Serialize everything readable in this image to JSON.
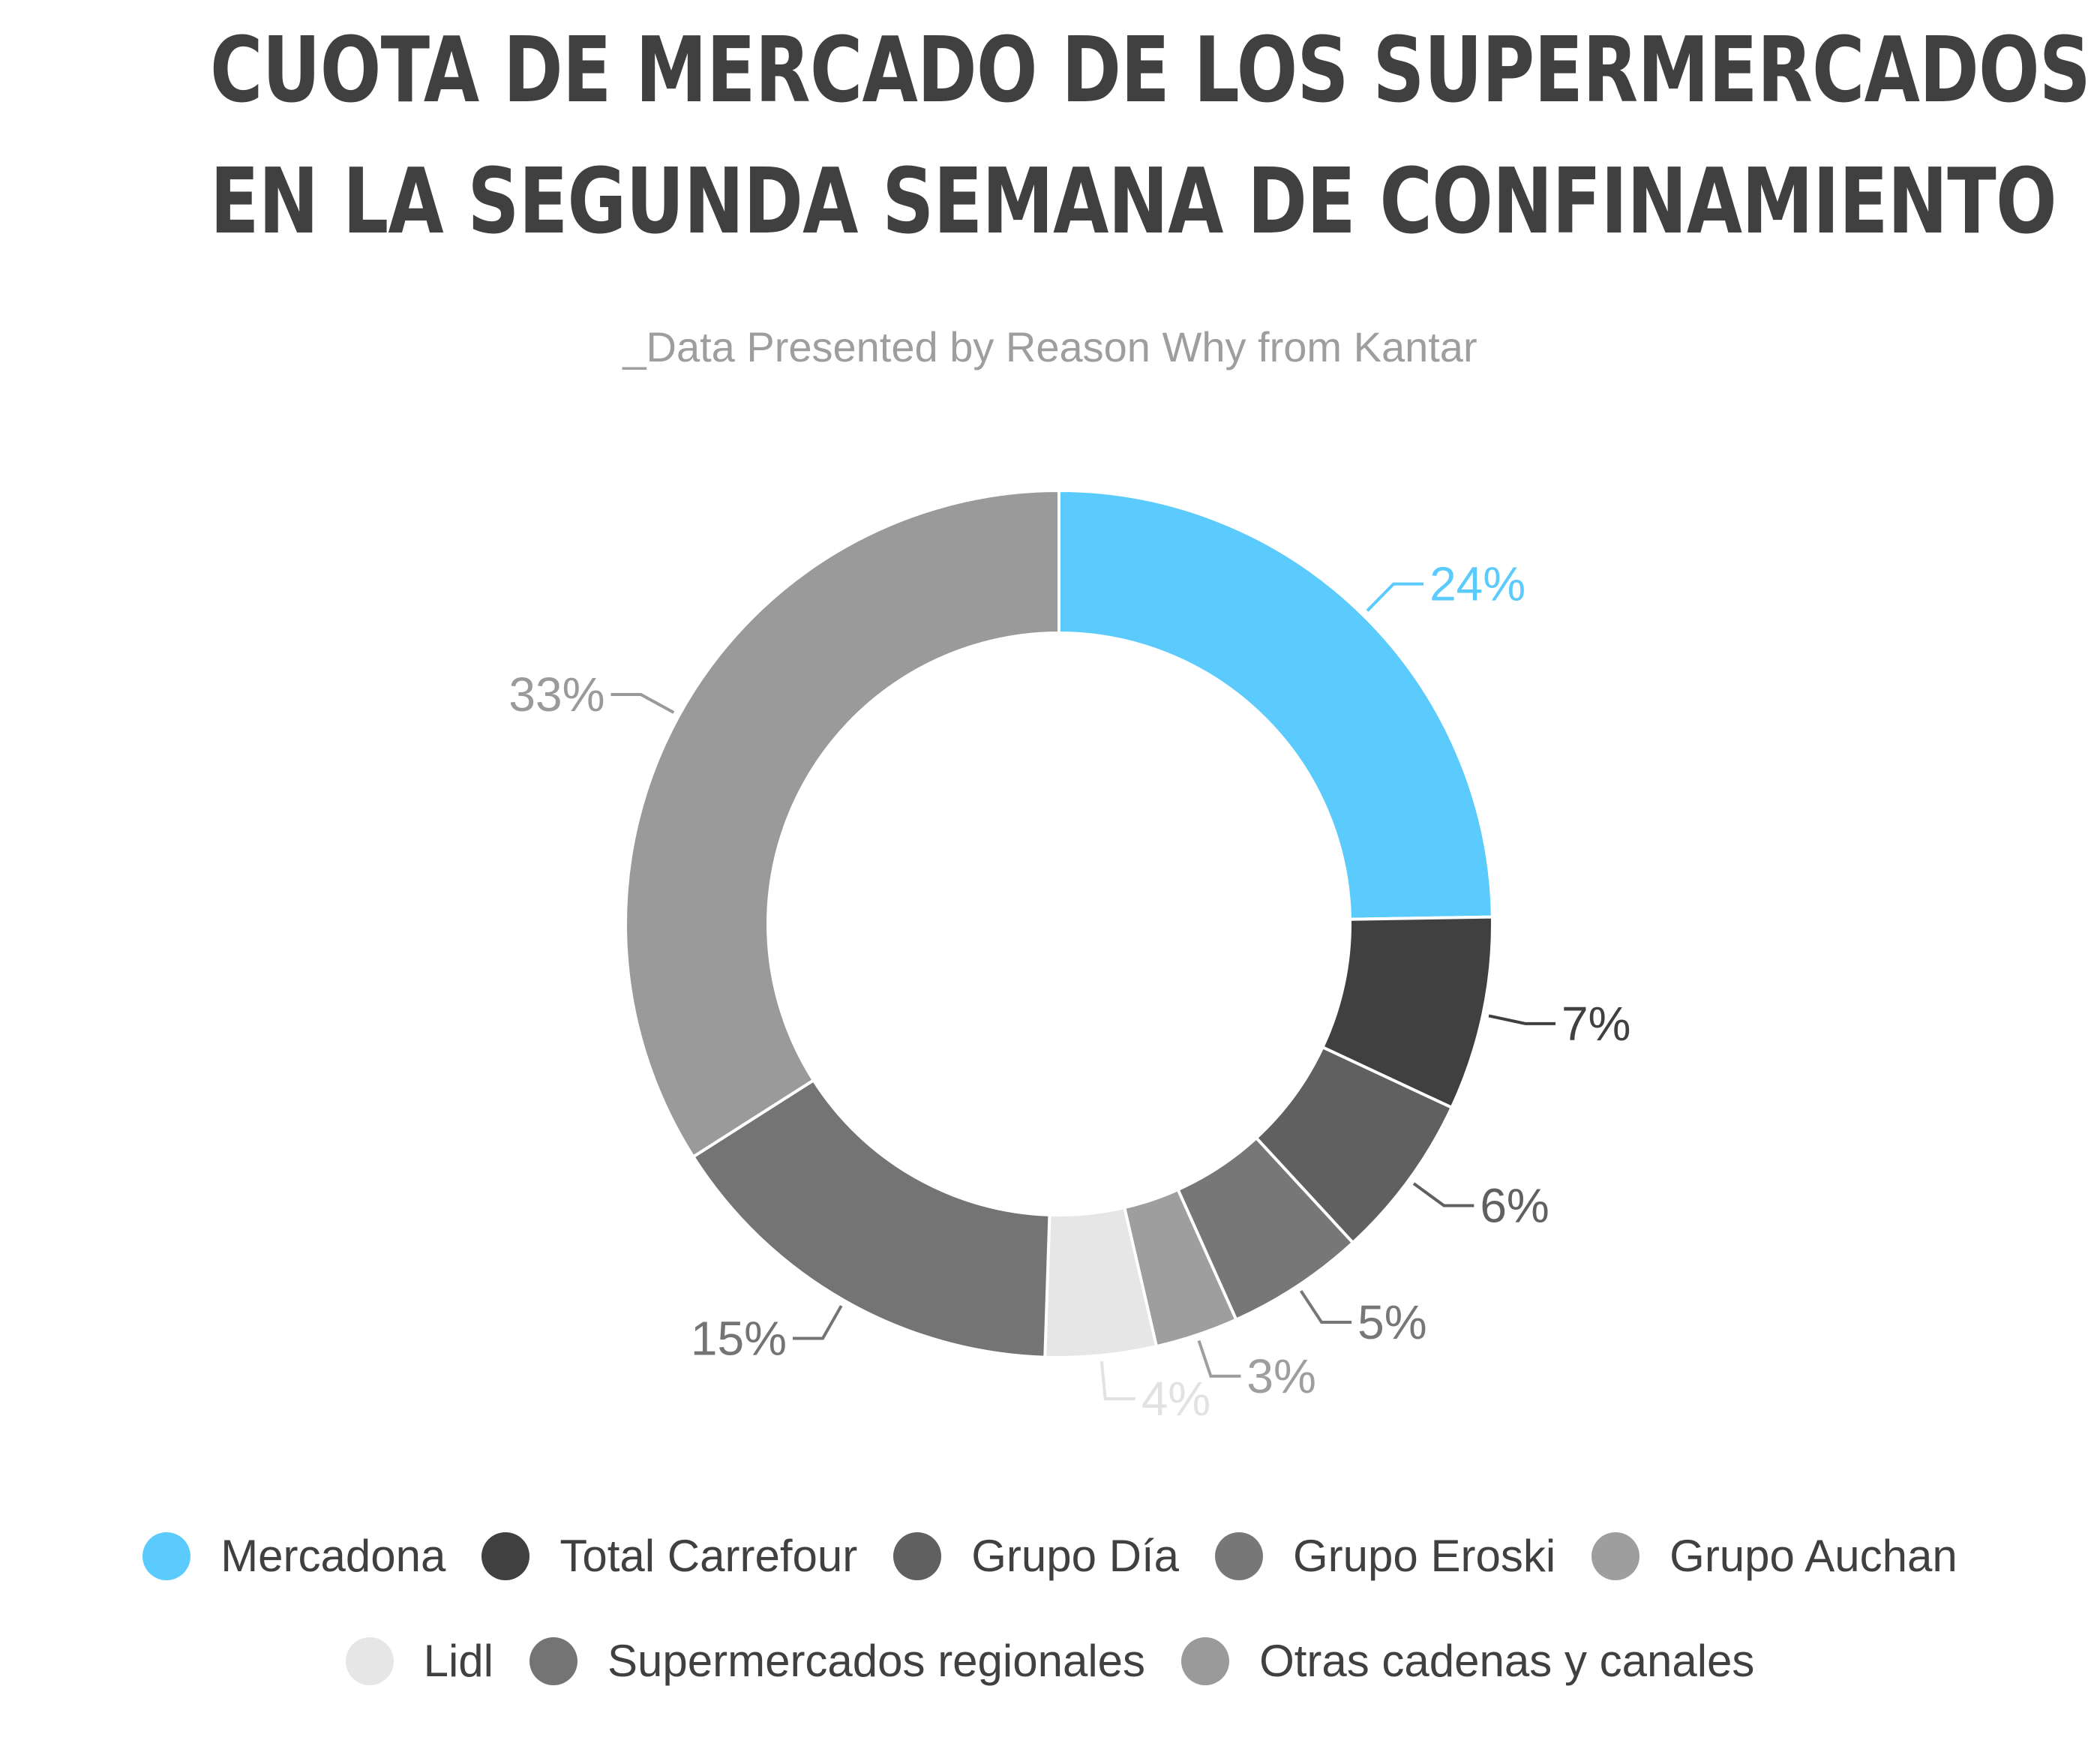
{
  "title_line1": "CUOTA DE MERCADO DE LOS SUPERMERCADOS",
  "title_line2": "EN LA SEGUNDA SEMANA DE CONFINAMIENTO",
  "subtitle": "_Data Presented by Reason Why from Kantar",
  "chart_data": {
    "type": "pie",
    "donut": true,
    "legend_position": "bottom",
    "series": [
      {
        "name": "Mercadona",
        "value": 24,
        "label": "24%",
        "color": "#5bcbfd"
      },
      {
        "name": "Total Carrefour",
        "value": 7,
        "label": "7%",
        "color": "#404040"
      },
      {
        "name": "Grupo Día",
        "value": 6,
        "label": "6%",
        "color": "#606060"
      },
      {
        "name": "Grupo Eroski",
        "value": 5,
        "label": "5%",
        "color": "#777777"
      },
      {
        "name": "Grupo Auchan",
        "value": 3,
        "label": "3%",
        "color": "#9e9e9e"
      },
      {
        "name": "Lidl",
        "value": 4,
        "label": "4%",
        "color": "#e6e6e6"
      },
      {
        "name": "Supermercados regionales",
        "value": 15,
        "label": "15%",
        "color": "#747474"
      },
      {
        "name": "Otras cadenas y canales",
        "value": 33,
        "label": "33%",
        "color": "#9a9a9a"
      }
    ]
  },
  "label_colors": [
    "#5bcbfd",
    "#404040",
    "#606060",
    "#777777",
    "#9e9e9e",
    "#e2e2e2",
    "#747474",
    "#9a9a9a"
  ]
}
